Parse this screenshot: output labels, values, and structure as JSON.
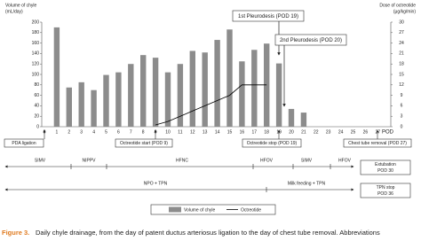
{
  "chart_data": {
    "type": "bar-line",
    "y_label": [
      "Volume of chyle",
      "(mL/day)"
    ],
    "y2_label": [
      "Dose of octreotide",
      "(μg/kg/min)"
    ],
    "x_label": "POD",
    "categories": [
      "0",
      "1",
      "2",
      "3",
      "4",
      "5",
      "6",
      "7",
      "8",
      "9",
      "10",
      "11",
      "12",
      "13",
      "14",
      "15",
      "16",
      "17",
      "18",
      "19",
      "20",
      "21",
      "22",
      "23",
      "24",
      "25",
      "26",
      "27"
    ],
    "series": [
      {
        "name": "Volume of chyle",
        "type": "bar",
        "color": "#8c8c8c",
        "values": [
          null,
          190,
          75,
          85,
          70,
          99,
          104,
          120,
          137,
          132,
          104,
          120,
          145,
          142,
          166,
          186,
          125,
          147,
          159,
          121,
          34,
          27,
          null,
          null,
          null,
          null,
          null,
          null
        ]
      },
      {
        "name": "Octreotide",
        "type": "line",
        "axis": "y2",
        "color": "#000000",
        "values": [
          null,
          null,
          null,
          null,
          null,
          null,
          null,
          null,
          null,
          0.5,
          1.5,
          3,
          4.5,
          6,
          7.5,
          9,
          12,
          12,
          12,
          null,
          null,
          null,
          null,
          null,
          null,
          null,
          null,
          null
        ]
      }
    ],
    "ylim": [
      0,
      200
    ],
    "yticks": [
      0,
      20,
      40,
      60,
      80,
      100,
      120,
      140,
      160,
      180,
      200
    ],
    "y2lim": [
      0,
      30
    ],
    "y2ticks": [
      0,
      3,
      6,
      9,
      12,
      15,
      18,
      21,
      24,
      27,
      30
    ],
    "annotations_top": [
      "1st Pleurodesis (POD 19)",
      "2nd Pleurodesis (POD 20)"
    ],
    "annotations_bottom": [
      "PDA ligation",
      "Octreotide start (POD 9)",
      "Octreotide stop (POD 19)",
      "Chest tube removal (POD 27)"
    ],
    "ventilation": [
      "SIMV",
      "NIPPV",
      "HFNC",
      "HFOV",
      "SIMV",
      "HFOV"
    ],
    "ventilation_end": [
      "Extubation",
      "POD 30"
    ],
    "nutrition": [
      "NPO + TPN",
      "Milk feeding + TPN"
    ],
    "nutrition_end": [
      "TPN stop",
      "POD 36"
    ]
  },
  "caption": {
    "label": "Figure 3.",
    "text": "Daily chyle drainage, from the day of patent ductus arteriosus ligation to the day of chest tube removal. Abbreviations"
  }
}
